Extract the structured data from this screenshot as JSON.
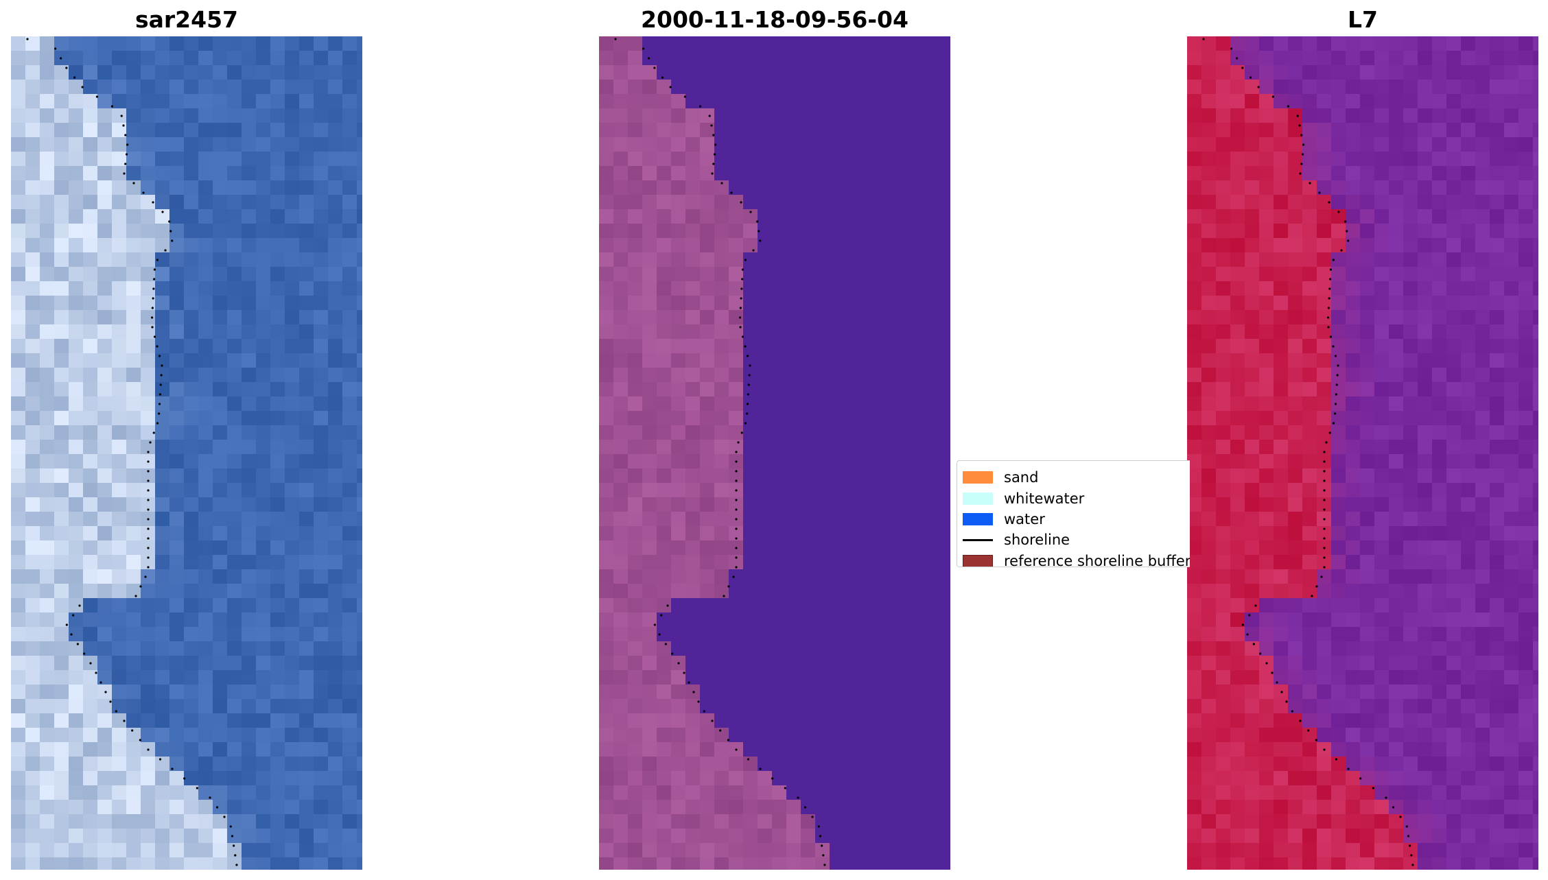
{
  "figure": {
    "panels": [
      {
        "title": "sar2457",
        "style": "rgb"
      },
      {
        "title": "2000-11-18-09-56-04",
        "style": "classified"
      },
      {
        "title": "L7",
        "style": "falsecolor"
      }
    ]
  },
  "legend": {
    "items": [
      {
        "label": "sand",
        "color": "#ff8c3a",
        "kind": "patch"
      },
      {
        "label": "whitewater",
        "color": "#c8fffa",
        "kind": "patch"
      },
      {
        "label": "water",
        "color": "#0d5cf5",
        "kind": "patch"
      },
      {
        "label": "shoreline",
        "color": "#000000",
        "kind": "line"
      },
      {
        "label": "reference shoreline buffer",
        "color": "#9a3232",
        "kind": "patch",
        "edge": "#6a1a1a"
      }
    ]
  },
  "colors": {
    "water_rgb": "#3d68b2",
    "land_rgb": "#a9bedf",
    "water_classified": "#52249a",
    "land_classified": "#9a4e90",
    "water_falsecolor": "#7a2aa0",
    "land_falsecolor": "#c81a48"
  }
}
